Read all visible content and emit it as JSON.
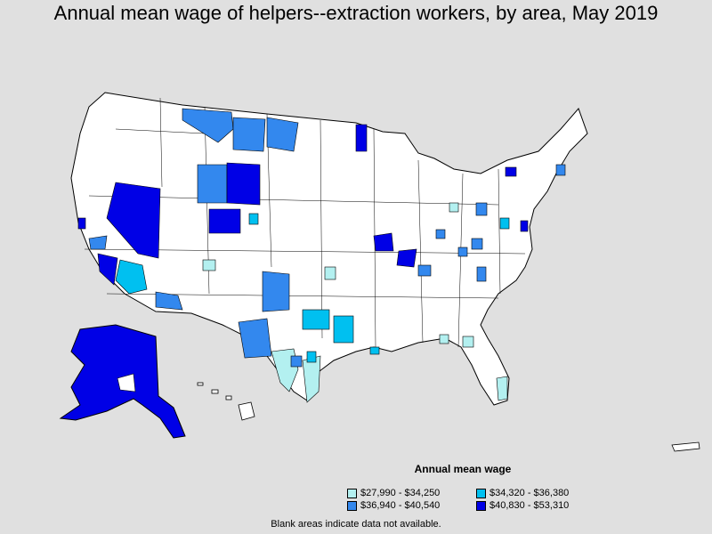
{
  "title": "Annual mean wage of helpers--extraction workers, by area, May 2019",
  "legend": {
    "title": "Annual mean wage",
    "items": [
      {
        "label": "$27,990 - $34,250",
        "color": "#b3f0f0"
      },
      {
        "label": "$34,320 - $36,380",
        "color": "#00c0f0"
      },
      {
        "label": "$36,940 - $40,540",
        "color": "#3388ee"
      },
      {
        "label": "$40,830 - $53,310",
        "color": "#0000e6"
      }
    ]
  },
  "footnote": "Blank areas indicate data not available."
}
